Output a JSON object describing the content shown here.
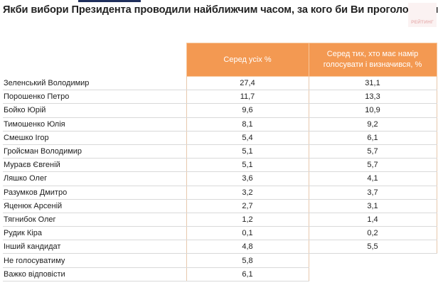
{
  "title": "Якби вибори Президента проводили найближчим часом, за кого би Ви проголосували?",
  "logo": "РЕЙТИНГ",
  "table": {
    "headers": [
      "Серед усіх %",
      "Серед тих, хто має намір голосувати і визначився, %"
    ],
    "rows": [
      {
        "name": "Зеленський Володимир",
        "all": "27,4",
        "decided": "31,1"
      },
      {
        "name": "Порошенко Петро",
        "all": "11,7",
        "decided": "13,3"
      },
      {
        "name": "Бойко Юрій",
        "all": "9,6",
        "decided": "10,9"
      },
      {
        "name": "Тимошенко Юлія",
        "all": "8,1",
        "decided": "9,2"
      },
      {
        "name": "Смешко Ігор",
        "all": "5,4",
        "decided": "6,1"
      },
      {
        "name": "Гройсман Володимир",
        "all": "5,1",
        "decided": "5,7"
      },
      {
        "name": "Мураєв Євгеній",
        "all": "5,1",
        "decided": "5,7"
      },
      {
        "name": "Ляшко Олег",
        "all": "3,6",
        "decided": "4,1"
      },
      {
        "name": "Разумков Дмитро",
        "all": "3,2",
        "decided": "3,7"
      },
      {
        "name": "Яценюк  Арсеній",
        "all": "2,7",
        "decided": "3,1"
      },
      {
        "name": "Тягнибок Олег",
        "all": "1,2",
        "decided": "1,4"
      },
      {
        "name": "Рудик Кіра",
        "all": "0,1",
        "decided": "0,2"
      },
      {
        "name": "Інший кандидат",
        "all": "4,8",
        "decided": "5,5"
      },
      {
        "name": "Не голосуватиму",
        "all": "5,8",
        "decided": ""
      },
      {
        "name": "Важко відповісти",
        "all": "6,1",
        "decided": ""
      }
    ]
  }
}
